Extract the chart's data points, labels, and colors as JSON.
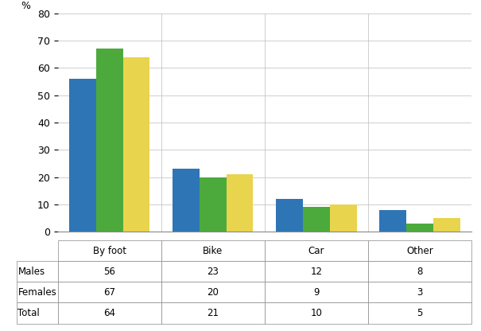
{
  "categories": [
    "By foot",
    "Bike",
    "Car",
    "Other"
  ],
  "series": {
    "Males": [
      56,
      23,
      12,
      8
    ],
    "Females": [
      67,
      20,
      9,
      3
    ],
    "Total": [
      64,
      21,
      10,
      5
    ]
  },
  "colors": {
    "Males": "#2e75b6",
    "Females": "#4caa3c",
    "Total": "#e8d44d"
  },
  "ylabel": "%",
  "ylim": [
    0,
    80
  ],
  "yticks": [
    0,
    10,
    20,
    30,
    40,
    50,
    60,
    70,
    80
  ],
  "bar_width": 0.26,
  "background_color": "#ffffff",
  "grid_color": "#bbbbbb"
}
